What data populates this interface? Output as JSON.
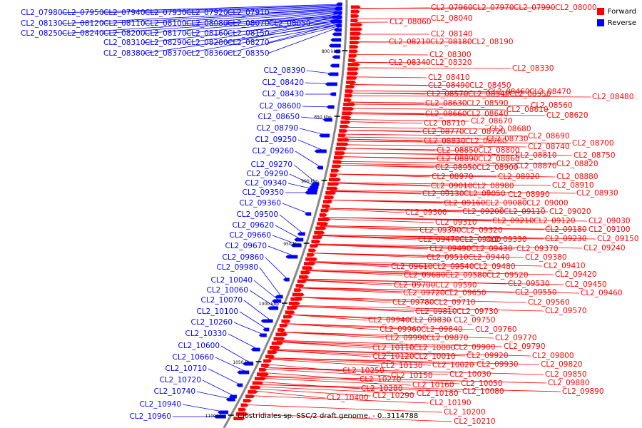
{
  "legend": {
    "forward": "Forward",
    "reverse": "Reverse"
  },
  "caption": "Clostridiales sp. SSC/2 draft genome. - 0..3114788",
  "colors": {
    "forward": "#ff0000",
    "reverse": "#0000ff",
    "backbone": "#888888"
  },
  "ticks": [
    "800 kbp",
    "850 kbp",
    "900 kbp",
    "950 kbp",
    "1000 kbp",
    "1050 kbp",
    "1100 kbp"
  ],
  "reverse_genes": [
    "CL2_07980",
    "CL2_07950",
    "CL2_07940",
    "CL2_07930",
    "CL2_07920",
    "CL2_07910",
    "CL2_08130",
    "CL2_08120",
    "CL2_08110",
    "CL2_08100",
    "CL2_08080",
    "CL2_08070",
    "CL2_08050",
    "CL2_08250",
    "CL2_08240",
    "CL2_08200",
    "CL2_08170",
    "CL2_08160",
    "CL2_08150",
    "CL2_08310",
    "CL2_08290",
    "CL2_08280",
    "CL2_08270",
    "CL2_08380",
    "CL2_08370",
    "CL2_08360",
    "CL2_08350",
    "CL2_08390",
    "CL2_08420",
    "CL2_08430",
    "CL2_08600",
    "CL2_08650",
    "CL2_08790",
    "CL2_09250",
    "CL2_09260",
    "CL2_09270",
    "CL2_09290",
    "CL2_09340",
    "CL2_09350",
    "CL2_09360",
    "CL2_09500",
    "CL2_09620",
    "CL2_09660",
    "CL2_09670",
    "CL2_09860",
    "CL2_09980",
    "CL2_10040",
    "CL2_10060",
    "CL2_10070",
    "CL2_10100",
    "CL2_10260",
    "CL2_10330",
    "CL2_10600",
    "CL2_10660",
    "CL2_10710",
    "CL2_10720",
    "CL2_10740",
    "CL2_10940",
    "CL2_10960"
  ],
  "forward_genes": [
    "CL2_07960",
    "CL2_07970",
    "CL2_07990",
    "CL2_08000",
    "CL2_08060",
    "CL2_08040",
    "CL2_08140",
    "CL2_08210",
    "CL2_08180",
    "CL2_08190",
    "CL2_08300",
    "CL2_08340",
    "CL2_08320",
    "CL2_08330",
    "CL2_08410",
    "CL2_08490",
    "CL2_08450",
    "CL2_08460",
    "CL2_08470",
    "CL2_08480",
    "CL2_08570",
    "CL2_08540",
    "CL2_08550",
    "CL2_08630",
    "CL2_08590",
    "CL2_08610",
    "CL2_08660",
    "CL2_08640",
    "CL2_08560",
    "CL2_08620",
    "CL2_08670",
    "CL2_08710",
    "CL2_08680",
    "CL2_08770",
    "CL2_08720",
    "CL2_08690",
    "CL2_08830",
    "CL2_08780",
    "CL2_08730",
    "CL2_08700",
    "CL2_08850",
    "CL2_08800",
    "CL2_08740",
    "CL2_08810",
    "CL2_08750",
    "CL2_08890",
    "CL2_08860",
    "CL2_08870",
    "CL2_08820",
    "CL2_08950",
    "CL2_08900",
    "CL2_08920",
    "CL2_08880",
    "CL2_08970",
    "CL2_09010",
    "CL2_08980",
    "CL2_08910",
    "CL2_09130",
    "CL2_09050",
    "CL2_08990",
    "CL2_08930",
    "CL2_09160",
    "CL2_09080",
    "CL2_09000",
    "CL2_09300",
    "CL2_09200",
    "CL2_09110",
    "CL2_09020",
    "CL2_09310",
    "CL2_09210",
    "CL2_09120",
    "CL2_09030",
    "CL2_09390",
    "CL2_09320",
    "CL2_09180",
    "CL2_09100",
    "CL2_09470",
    "CL2_09400",
    "CL2_09330",
    "CL2_09230",
    "CL2_09150",
    "CL2_09490",
    "CL2_09430",
    "CL2_09370",
    "CL2_09240",
    "CL2_09510",
    "CL2_09440",
    "CL2_09380",
    "CL2_09610",
    "CL2_09540",
    "CL2_09480",
    "CL2_09410",
    "CL2_09680",
    "CL2_09580",
    "CL2_09520",
    "CL2_09420",
    "CL2_09700",
    "CL2_09590",
    "CL2_09530",
    "CL2_09450",
    "CL2_09720",
    "CL2_09650",
    "CL2_09550",
    "CL2_09460",
    "CL2_09780",
    "CL2_09710",
    "CL2_09560",
    "CL2_09810",
    "CL2_09730",
    "CL2_09570",
    "CL2_09940",
    "CL2_09830",
    "CL2_09750",
    "CL2_09960",
    "CL2_09840",
    "CL2_09760",
    "CL2_09990",
    "CL2_09870",
    "CL2_09770",
    "CL2_10110",
    "CL2_10000",
    "CL2_09900",
    "CL2_09790",
    "CL2_10120",
    "CL2_10010",
    "CL2_09920",
    "CL2_09800",
    "CL2_10130",
    "CL2_10020",
    "CL2_09930",
    "CL2_09820",
    "CL2_10250",
    "CL2_10030",
    "CL2_09850",
    "CL2_10270",
    "CL2_10150",
    "CL2_10050",
    "CL2_09880",
    "CL2_10280",
    "CL2_10160",
    "CL2_10080",
    "CL2_09890",
    "CL2_10400",
    "CL2_10290",
    "CL2_10180",
    "CL2_10190",
    "CL2_10200",
    "CL2_10210"
  ]
}
